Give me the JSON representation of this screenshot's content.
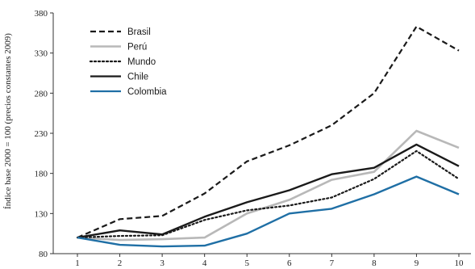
{
  "chart_data": {
    "type": "line",
    "title": "",
    "xlabel": "",
    "ylabel": "Índice base 2000 = 100 (precios constantes 2009)",
    "x": [
      1,
      2,
      3,
      4,
      5,
      6,
      7,
      8,
      9,
      10
    ],
    "xlim": [
      1,
      10
    ],
    "ylim": [
      80,
      380
    ],
    "yticks": [
      80,
      130,
      180,
      230,
      280,
      330,
      380
    ],
    "grid": false,
    "legend": "top-left",
    "series": [
      {
        "name": "Brasil",
        "color": "#1a1a1a",
        "style": "dashed",
        "values": [
          100,
          123,
          127,
          155,
          195,
          215,
          240,
          280,
          363,
          333
        ]
      },
      {
        "name": "Perú",
        "color": "#b8b8b8",
        "style": "solid",
        "values": [
          100,
          97,
          98,
          100,
          130,
          147,
          172,
          182,
          233,
          212
        ]
      },
      {
        "name": "Mundo",
        "color": "#1a1a1a",
        "style": "dotted",
        "values": [
          100,
          102,
          103,
          122,
          134,
          140,
          150,
          173,
          208,
          173
        ]
      },
      {
        "name": "Chile",
        "color": "#1a1a1a",
        "style": "solid",
        "values": [
          100,
          109,
          104,
          126,
          144,
          159,
          179,
          187,
          216,
          189
        ]
      },
      {
        "name": "Colombia",
        "color": "#1f6fa5",
        "style": "solid",
        "values": [
          100,
          91,
          89,
          90,
          105,
          130,
          136,
          154,
          176,
          154
        ]
      }
    ]
  }
}
